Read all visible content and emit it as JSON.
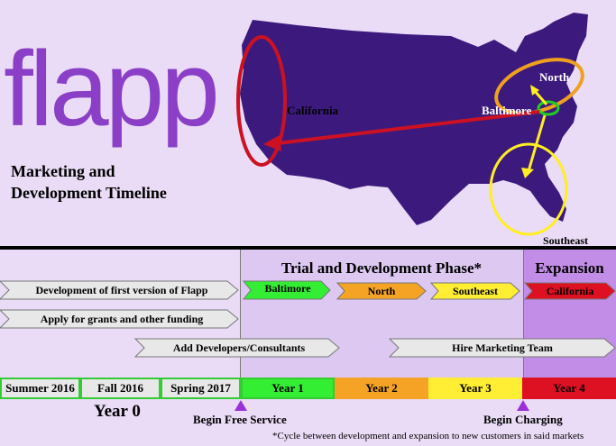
{
  "logo": "flapp",
  "subtitle": {
    "line1": "Marketing and",
    "line2": "Development Timeline"
  },
  "map": {
    "labels": {
      "california": "California",
      "baltimore": "Baltimore",
      "north": "North",
      "southeast": "Southeast"
    },
    "colors": {
      "land": "#3c1a7d",
      "california_ring": "#cc1122",
      "north_ring": "#f0a020",
      "baltimore_ring": "#22cc22",
      "southeast_ring": "#ffee22"
    }
  },
  "phases": {
    "trial": "Trial and Development Phase*",
    "expansion": "Expansion"
  },
  "tasks": {
    "dev_flapp": "Development of first version of Flapp",
    "grants": "Apply for grants and other funding",
    "developers": "Add Developers/Consultants",
    "marketing": "Hire Marketing Team"
  },
  "markets": {
    "baltimore": "Baltimore",
    "north": "North",
    "southeast": "Southeast",
    "california": "California"
  },
  "timeline": {
    "summer2016": "Summer 2016",
    "fall2016": "Fall 2016",
    "spring2017": "Spring 2017",
    "year1": "Year 1",
    "year2": "Year 2",
    "year3": "Year 3",
    "year4": "Year 4",
    "year0": "Year 0"
  },
  "milestones": {
    "free": "Begin Free Service",
    "charging": "Begin Charging"
  },
  "footnote": "*Cycle between development and expansion to new customers in said markets",
  "colors": {
    "green": "#33ee33",
    "orange": "#f4a324",
    "yellow": "#ffee33",
    "red": "#dd1122",
    "gray": "#e8e8e8",
    "purple": "#8a3fc6"
  }
}
